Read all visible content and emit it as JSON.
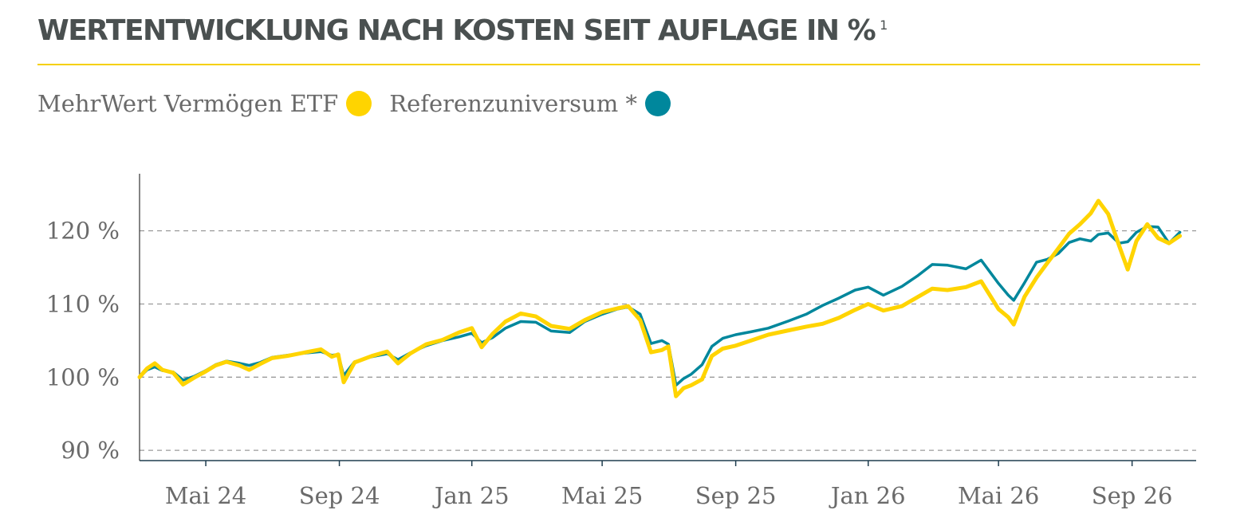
{
  "header": {
    "title": "WERTENTWICKLUNG NACH KOSTEN SEIT AUFLAGE IN %",
    "footnote_marker": "1"
  },
  "colors": {
    "title_text": "#4a5050",
    "rule": "#f5d000",
    "series_etf": "#ffd400",
    "series_referenz": "#00879c",
    "gridline": "#9a9a9a",
    "axis": "#1f3d4f",
    "text": "#6a6a6a"
  },
  "legend": [
    {
      "label": "MehrWert Vermögen ETF",
      "color": "#ffd400"
    },
    {
      "label": "Referenzuniversum *",
      "color": "#00879c"
    }
  ],
  "chart_data": {
    "type": "line",
    "title": "WERTENTWICKLUNG NACH KOSTEN SEIT AUFLAGE IN %",
    "xlabel": "",
    "ylabel": "",
    "ylim": [
      88.6,
      127.8
    ],
    "yticks": [
      90,
      100,
      110,
      120
    ],
    "ytick_labels": [
      "90 %",
      "100 %",
      "110 %",
      "120 %"
    ],
    "grid": "horizontal dashed at y ticks",
    "x_range": [
      "2024-03-01",
      "2026-10-30"
    ],
    "xticks": [
      "2024-05-01",
      "2024-09-01",
      "2025-01-01",
      "2025-05-01",
      "2025-09-01",
      "2026-01-01",
      "2026-05-01",
      "2026-09-01"
    ],
    "xtick_labels": [
      "Mai 24",
      "Sep 24",
      "Jan 25",
      "Mai 25",
      "Sep 25",
      "Jan 26",
      "Mai 26",
      "Sep 26"
    ],
    "legend_position": "top-left",
    "series": [
      {
        "name": "MehrWert Vermögen ETF",
        "color": "#ffd400",
        "points": [
          [
            "2024-03-01",
            100.0
          ],
          [
            "2024-03-08",
            101.2
          ],
          [
            "2024-03-15",
            101.9
          ],
          [
            "2024-03-22",
            101.0
          ],
          [
            "2024-04-01",
            100.6
          ],
          [
            "2024-04-10",
            99.0
          ],
          [
            "2024-04-20",
            99.9
          ],
          [
            "2024-05-01",
            100.8
          ],
          [
            "2024-05-10",
            101.6
          ],
          [
            "2024-05-20",
            102.1
          ],
          [
            "2024-06-01",
            101.6
          ],
          [
            "2024-06-10",
            101.0
          ],
          [
            "2024-06-20",
            101.8
          ],
          [
            "2024-07-01",
            102.6
          ],
          [
            "2024-07-15",
            102.9
          ],
          [
            "2024-08-01",
            103.4
          ],
          [
            "2024-08-15",
            103.8
          ],
          [
            "2024-08-25",
            102.8
          ],
          [
            "2024-08-31",
            103.1
          ],
          [
            "2024-09-05",
            99.3
          ],
          [
            "2024-09-15",
            102.0
          ],
          [
            "2024-10-01",
            102.9
          ],
          [
            "2024-10-15",
            103.5
          ],
          [
            "2024-10-25",
            101.9
          ],
          [
            "2024-11-05",
            103.2
          ],
          [
            "2024-11-20",
            104.5
          ],
          [
            "2024-12-05",
            105.1
          ],
          [
            "2024-12-20",
            106.1
          ],
          [
            "2025-01-01",
            106.7
          ],
          [
            "2025-01-10",
            104.1
          ],
          [
            "2025-01-20",
            105.9
          ],
          [
            "2025-02-01",
            107.6
          ],
          [
            "2025-02-15",
            108.7
          ],
          [
            "2025-03-01",
            108.3
          ],
          [
            "2025-03-15",
            107.0
          ],
          [
            "2025-04-01",
            106.6
          ],
          [
            "2025-04-15",
            107.8
          ],
          [
            "2025-05-01",
            108.9
          ],
          [
            "2025-05-15",
            109.4
          ],
          [
            "2025-05-25",
            109.7
          ],
          [
            "2025-06-05",
            107.8
          ],
          [
            "2025-06-15",
            103.4
          ],
          [
            "2025-06-25",
            103.7
          ],
          [
            "2025-07-01",
            104.2
          ],
          [
            "2025-07-08",
            97.4
          ],
          [
            "2025-07-15",
            98.5
          ],
          [
            "2025-07-22",
            98.9
          ],
          [
            "2025-08-01",
            99.7
          ],
          [
            "2025-08-10",
            102.9
          ],
          [
            "2025-08-20",
            103.9
          ],
          [
            "2025-09-01",
            104.3
          ],
          [
            "2025-09-15",
            105.0
          ],
          [
            "2025-10-01",
            105.8
          ],
          [
            "2025-10-20",
            106.4
          ],
          [
            "2025-11-05",
            106.9
          ],
          [
            "2025-11-20",
            107.3
          ],
          [
            "2025-12-05",
            108.1
          ],
          [
            "2025-12-20",
            109.2
          ],
          [
            "2026-01-01",
            110.0
          ],
          [
            "2026-01-15",
            109.1
          ],
          [
            "2026-02-01",
            109.7
          ],
          [
            "2026-02-15",
            110.9
          ],
          [
            "2026-03-01",
            112.1
          ],
          [
            "2026-03-15",
            111.9
          ],
          [
            "2026-04-01",
            112.3
          ],
          [
            "2026-04-15",
            113.1
          ],
          [
            "2026-05-01",
            109.3
          ],
          [
            "2026-05-10",
            108.2
          ],
          [
            "2026-05-15",
            107.2
          ],
          [
            "2026-05-25",
            111.0
          ],
          [
            "2026-06-05",
            113.6
          ],
          [
            "2026-06-15",
            115.6
          ],
          [
            "2026-06-25",
            117.6
          ],
          [
            "2026-07-05",
            119.6
          ],
          [
            "2026-07-15",
            120.9
          ],
          [
            "2026-07-25",
            122.4
          ],
          [
            "2026-08-01",
            124.1
          ],
          [
            "2026-08-10",
            122.3
          ],
          [
            "2026-08-20",
            118.0
          ],
          [
            "2026-08-28",
            114.7
          ],
          [
            "2026-09-05",
            118.6
          ],
          [
            "2026-09-15",
            120.9
          ],
          [
            "2026-09-25",
            119.0
          ],
          [
            "2026-10-05",
            118.3
          ],
          [
            "2026-10-15",
            119.3
          ]
        ]
      },
      {
        "name": "Referenzuniversum *",
        "color": "#00879c",
        "points": [
          [
            "2024-03-01",
            100.0
          ],
          [
            "2024-03-08",
            101.0
          ],
          [
            "2024-03-15",
            101.4
          ],
          [
            "2024-03-22",
            100.9
          ],
          [
            "2024-04-01",
            100.7
          ],
          [
            "2024-04-10",
            99.6
          ],
          [
            "2024-04-20",
            100.1
          ],
          [
            "2024-05-01",
            100.9
          ],
          [
            "2024-05-10",
            101.7
          ],
          [
            "2024-05-20",
            102.2
          ],
          [
            "2024-06-01",
            101.9
          ],
          [
            "2024-06-10",
            101.6
          ],
          [
            "2024-06-20",
            102.0
          ],
          [
            "2024-07-01",
            102.7
          ],
          [
            "2024-07-15",
            103.0
          ],
          [
            "2024-08-01",
            103.3
          ],
          [
            "2024-08-15",
            103.5
          ],
          [
            "2024-08-25",
            103.0
          ],
          [
            "2024-08-31",
            103.1
          ],
          [
            "2024-09-05",
            100.2
          ],
          [
            "2024-09-15",
            102.1
          ],
          [
            "2024-10-01",
            102.8
          ],
          [
            "2024-10-15",
            103.2
          ],
          [
            "2024-10-25",
            102.4
          ],
          [
            "2024-11-05",
            103.3
          ],
          [
            "2024-11-20",
            104.3
          ],
          [
            "2024-12-05",
            105.0
          ],
          [
            "2024-12-20",
            105.5
          ],
          [
            "2025-01-01",
            106.0
          ],
          [
            "2025-01-10",
            104.7
          ],
          [
            "2025-01-20",
            105.4
          ],
          [
            "2025-02-01",
            106.7
          ],
          [
            "2025-02-15",
            107.6
          ],
          [
            "2025-03-01",
            107.5
          ],
          [
            "2025-03-15",
            106.3
          ],
          [
            "2025-04-01",
            106.1
          ],
          [
            "2025-04-15",
            107.6
          ],
          [
            "2025-05-01",
            108.6
          ],
          [
            "2025-05-15",
            109.3
          ],
          [
            "2025-05-25",
            109.6
          ],
          [
            "2025-06-05",
            108.6
          ],
          [
            "2025-06-15",
            104.6
          ],
          [
            "2025-06-25",
            105.0
          ],
          [
            "2025-07-01",
            104.5
          ],
          [
            "2025-07-08",
            98.9
          ],
          [
            "2025-07-15",
            99.8
          ],
          [
            "2025-07-22",
            100.4
          ],
          [
            "2025-08-01",
            101.7
          ],
          [
            "2025-08-10",
            104.2
          ],
          [
            "2025-08-20",
            105.3
          ],
          [
            "2025-09-01",
            105.8
          ],
          [
            "2025-09-15",
            106.2
          ],
          [
            "2025-10-01",
            106.7
          ],
          [
            "2025-10-20",
            107.7
          ],
          [
            "2025-11-05",
            108.6
          ],
          [
            "2025-11-20",
            109.8
          ],
          [
            "2025-12-05",
            110.8
          ],
          [
            "2025-12-20",
            111.9
          ],
          [
            "2026-01-01",
            112.3
          ],
          [
            "2026-01-15",
            111.2
          ],
          [
            "2026-02-01",
            112.4
          ],
          [
            "2026-02-15",
            113.8
          ],
          [
            "2026-03-01",
            115.4
          ],
          [
            "2026-03-15",
            115.3
          ],
          [
            "2026-04-01",
            114.8
          ],
          [
            "2026-04-15",
            116.0
          ],
          [
            "2026-05-01",
            112.8
          ],
          [
            "2026-05-10",
            111.2
          ],
          [
            "2026-05-15",
            110.5
          ],
          [
            "2026-05-25",
            112.9
          ],
          [
            "2026-06-05",
            115.7
          ],
          [
            "2026-06-15",
            116.1
          ],
          [
            "2026-06-25",
            116.9
          ],
          [
            "2026-07-05",
            118.4
          ],
          [
            "2026-07-15",
            118.9
          ],
          [
            "2026-07-25",
            118.6
          ],
          [
            "2026-08-01",
            119.5
          ],
          [
            "2026-08-10",
            119.7
          ],
          [
            "2026-08-20",
            118.3
          ],
          [
            "2026-08-28",
            118.5
          ],
          [
            "2026-09-05",
            119.8
          ],
          [
            "2026-09-15",
            120.6
          ],
          [
            "2026-09-25",
            120.5
          ],
          [
            "2026-10-05",
            118.3
          ],
          [
            "2026-10-15",
            119.8
          ]
        ]
      }
    ]
  }
}
